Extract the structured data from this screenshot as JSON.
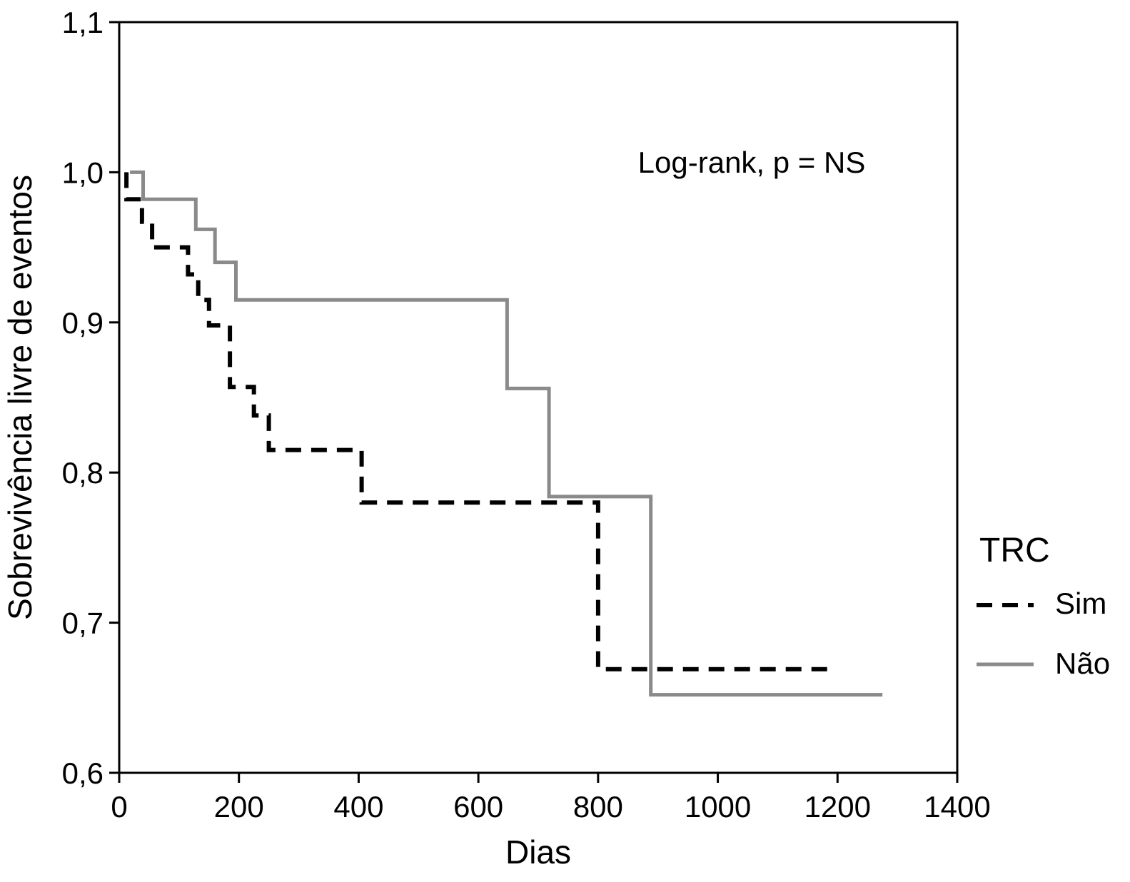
{
  "chart_data": {
    "type": "line",
    "step": true,
    "xlabel": "Dias",
    "ylabel": "Sobrevivência livre de eventos",
    "xlim": [
      0,
      1400
    ],
    "ylim": [
      0.6,
      1.1
    ],
    "x_ticks": [
      0,
      200,
      400,
      600,
      800,
      1000,
      1200,
      1400
    ],
    "x_tick_labels": [
      "0",
      "200",
      "400",
      "600",
      "800",
      "1000",
      "1200",
      "1400"
    ],
    "y_ticks": [
      0.6,
      0.7,
      0.8,
      0.9,
      1.0,
      1.1
    ],
    "y_tick_labels": [
      "0,6",
      "0,7",
      "0,8",
      "0,9",
      "1,0",
      "1,1"
    ],
    "annotation": "Log-rank, p = NS",
    "legend": {
      "title": "TRC",
      "placement": "right"
    },
    "grid": false,
    "series": [
      {
        "name": "Sim",
        "color": "#000000",
        "style": "dashed",
        "points": [
          [
            12,
            1.0
          ],
          [
            12,
            0.982
          ],
          [
            38,
            0.982
          ],
          [
            38,
            0.967
          ],
          [
            55,
            0.967
          ],
          [
            55,
            0.95
          ],
          [
            115,
            0.95
          ],
          [
            115,
            0.932
          ],
          [
            132,
            0.932
          ],
          [
            132,
            0.915
          ],
          [
            150,
            0.915
          ],
          [
            150,
            0.898
          ],
          [
            185,
            0.898
          ],
          [
            185,
            0.857
          ],
          [
            225,
            0.857
          ],
          [
            225,
            0.838
          ],
          [
            250,
            0.838
          ],
          [
            250,
            0.815
          ],
          [
            405,
            0.815
          ],
          [
            405,
            0.78
          ],
          [
            800,
            0.78
          ],
          [
            800,
            0.669
          ],
          [
            1190,
            0.669
          ]
        ]
      },
      {
        "name": "Não",
        "color": "#8a8a8a",
        "style": "solid",
        "points": [
          [
            18,
            1.0
          ],
          [
            40,
            1.0
          ],
          [
            40,
            0.982
          ],
          [
            128,
            0.982
          ],
          [
            128,
            0.962
          ],
          [
            160,
            0.962
          ],
          [
            160,
            0.94
          ],
          [
            195,
            0.94
          ],
          [
            195,
            0.915
          ],
          [
            648,
            0.915
          ],
          [
            648,
            0.856
          ],
          [
            718,
            0.856
          ],
          [
            718,
            0.784
          ],
          [
            888,
            0.784
          ],
          [
            888,
            0.652
          ],
          [
            1275,
            0.652
          ]
        ]
      }
    ]
  }
}
